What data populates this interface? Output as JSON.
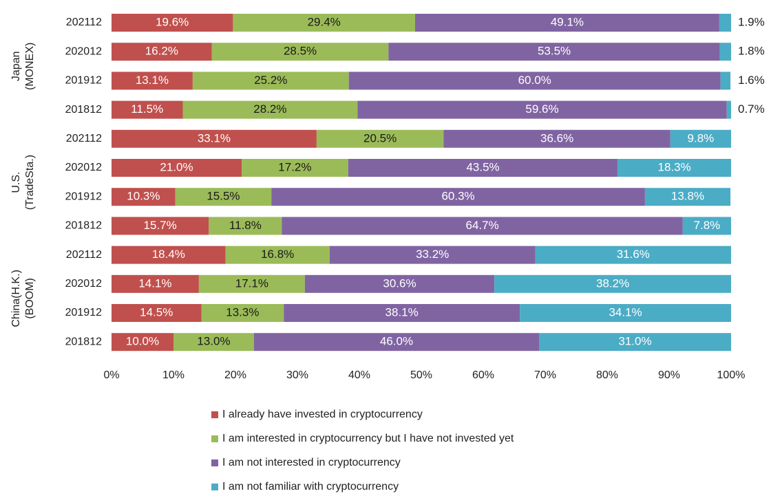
{
  "chart_data": {
    "type": "stacked-barh",
    "categories": [
      "202112",
      "202012",
      "201912",
      "201812",
      "202112",
      "202012",
      "201912",
      "201812",
      "202112",
      "202012",
      "201912",
      "201812"
    ],
    "groups": [
      {
        "label": [
          "Japan",
          "(MONEX)"
        ]
      },
      {
        "label": [
          "U.S.",
          "(TradeSta.)"
        ]
      },
      {
        "label": [
          "China(H.K.)",
          "(BOOM)"
        ]
      }
    ],
    "series": [
      {
        "name": "I already have invested in cryptocurrency",
        "color": "#c0504d",
        "values": [
          19.6,
          16.2,
          13.1,
          11.5,
          33.1,
          21.0,
          10.3,
          15.7,
          18.4,
          14.1,
          14.5,
          10.0
        ],
        "value_labels": [
          "19.6%",
          "16.2%",
          "13.1%",
          "11.5%",
          "33.1%",
          "21.0%",
          "10.3%",
          "15.7%",
          "18.4%",
          "14.1%",
          "14.5%",
          "10.0%"
        ]
      },
      {
        "name": "I am interested in cryptocurrency but I have not invested yet",
        "color": "#9bbb59",
        "values": [
          29.4,
          28.5,
          25.2,
          28.2,
          20.5,
          17.2,
          15.5,
          11.8,
          16.8,
          17.1,
          13.3,
          13.0
        ],
        "value_labels": [
          "29.4%",
          "28.5%",
          "25.2%",
          "28.2%",
          "20.5%",
          "17.2%",
          "15.5%",
          "11.8%",
          "16.8%",
          "17.1%",
          "13.3%",
          "13.0%"
        ]
      },
      {
        "name": "I am not interested in cryptocurrency",
        "color": "#8064a2",
        "values": [
          49.1,
          53.5,
          60.0,
          59.6,
          36.6,
          43.5,
          60.3,
          64.7,
          33.2,
          30.6,
          38.1,
          46.0
        ],
        "value_labels": [
          "49.1%",
          "53.5%",
          "60.0%",
          "59.6%",
          "36.6%",
          "43.5%",
          "60.3%",
          "64.7%",
          "33.2%",
          "30.6%",
          "38.1%",
          "46.0%"
        ]
      },
      {
        "name": "I am not familiar with cryptocurrency",
        "color": "#4bacc6",
        "values": [
          1.9,
          1.8,
          1.6,
          0.7,
          9.8,
          18.3,
          13.8,
          7.8,
          31.6,
          38.2,
          34.1,
          31.0
        ],
        "value_labels": [
          "1.9%",
          "1.8%",
          "1.6%",
          "0.7%",
          "9.8%",
          "18.3%",
          "13.8%",
          "7.8%",
          "31.6%",
          "38.2%",
          "34.1%",
          "31.0%"
        ]
      }
    ],
    "xlim": [
      0,
      100
    ],
    "xticks": [
      {
        "value": 0,
        "label": "0%"
      },
      {
        "value": 10,
        "label": "10%"
      },
      {
        "value": 20,
        "label": "20%"
      },
      {
        "value": 30,
        "label": "30%"
      },
      {
        "value": 40,
        "label": "40%"
      },
      {
        "value": 50,
        "label": "50%"
      },
      {
        "value": 60,
        "label": "60%"
      },
      {
        "value": 70,
        "label": "70%"
      },
      {
        "value": 80,
        "label": "80%"
      },
      {
        "value": 90,
        "label": "90%"
      },
      {
        "value": 100,
        "label": "100%"
      }
    ],
    "legend": "bottom"
  }
}
